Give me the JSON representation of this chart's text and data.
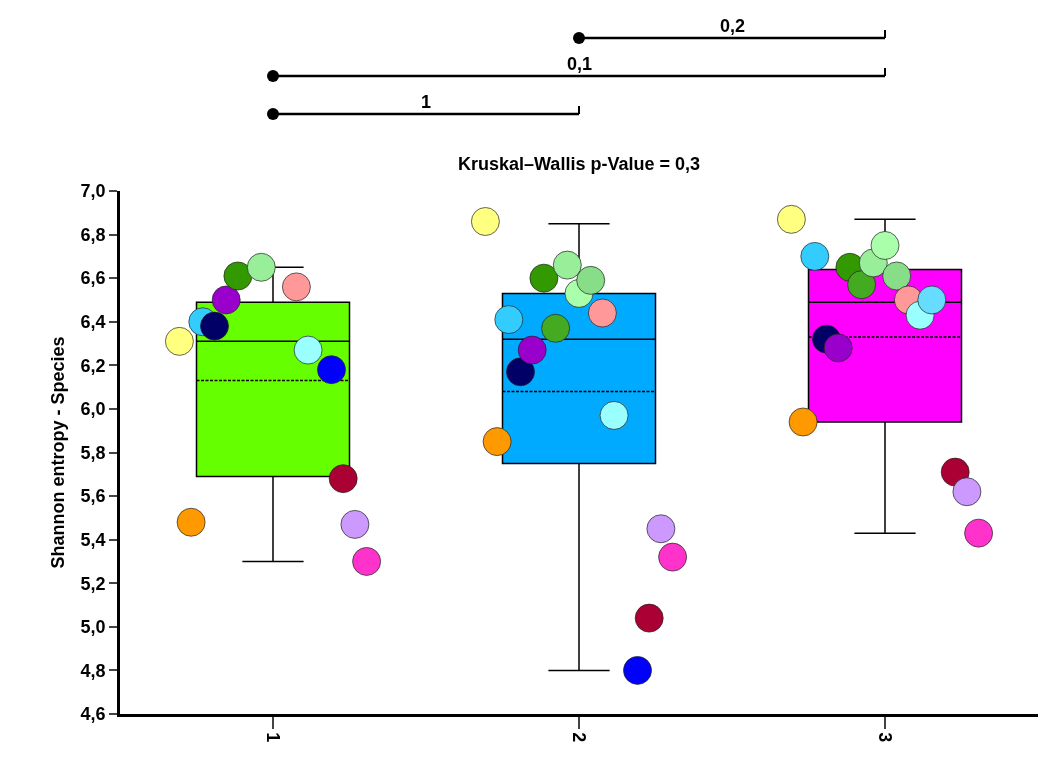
{
  "chart_data": {
    "type": "box",
    "ylabel": "Shannon entropy - Species",
    "categories": [
      "1",
      "2",
      "3"
    ],
    "colors": [
      "#66ff00",
      "#00aaff",
      "#ff00ff"
    ],
    "boxes": [
      {
        "low": 5.3,
        "q1": 5.69,
        "median": 6.31,
        "q3": 6.49,
        "high": 6.65,
        "mean": 6.13
      },
      {
        "low": 4.8,
        "q1": 5.75,
        "median": 6.32,
        "q3": 6.53,
        "high": 6.85,
        "mean": 6.08
      },
      {
        "low": 5.43,
        "q1": 5.94,
        "median": 6.49,
        "q3": 6.64,
        "high": 6.87,
        "mean": 6.33
      }
    ],
    "ylim": [
      4.6,
      7.0
    ],
    "yticks": [
      {
        "value": 4.6,
        "label": "4,6"
      },
      {
        "value": 4.8,
        "label": "4,8"
      },
      {
        "value": 5.0,
        "label": "5,0"
      },
      {
        "value": 5.2,
        "label": "5,2"
      },
      {
        "value": 5.4,
        "label": "5,4"
      },
      {
        "value": 5.6,
        "label": "5,6"
      },
      {
        "value": 5.8,
        "label": "5,8"
      },
      {
        "value": 6.0,
        "label": "6,0"
      },
      {
        "value": 6.2,
        "label": "6,2"
      },
      {
        "value": 6.4,
        "label": "6,4"
      },
      {
        "value": 6.6,
        "label": "6,6"
      },
      {
        "value": 6.8,
        "label": "6,8"
      },
      {
        "value": 7.0,
        "label": "7,0"
      }
    ],
    "series": [
      {
        "type": "scatter",
        "color": "#ffff80",
        "x": [
          "1",
          "2",
          "3"
        ],
        "values": [
          6.31,
          6.86,
          6.87
        ]
      },
      {
        "type": "scatter",
        "color": "#ff9900",
        "x": [
          "1",
          "2",
          "3"
        ],
        "values": [
          5.48,
          5.85,
          5.94
        ]
      },
      {
        "type": "scatter",
        "color": "#33ccff",
        "x": [
          "1",
          "2",
          "3"
        ],
        "values": [
          6.4,
          6.41,
          6.7
        ]
      },
      {
        "type": "scatter",
        "color": "#000066",
        "x": [
          "1",
          "2",
          "3"
        ],
        "values": [
          6.38,
          6.17,
          6.32
        ]
      },
      {
        "type": "scatter",
        "color": "#9900cc",
        "x": [
          "1",
          "2",
          "3"
        ],
        "values": [
          6.5,
          6.27,
          6.28
        ]
      },
      {
        "type": "scatter",
        "color": "#339900",
        "x": [
          "1",
          "2",
          "3"
        ],
        "values": [
          6.61,
          6.6,
          6.65
        ]
      },
      {
        "type": "scatter",
        "color": "#44aa22",
        "x": [
          "1",
          "2",
          "3"
        ],
        "values": [
          null,
          6.37,
          6.57
        ]
      },
      {
        "type": "scatter",
        "color": "#99ee99",
        "x": [
          "1",
          "2",
          "3"
        ],
        "values": [
          6.65,
          6.66,
          6.67
        ]
      },
      {
        "type": "scatter",
        "color": "#aaffaa",
        "x": [
          "1",
          "2",
          "3"
        ],
        "values": [
          null,
          6.53,
          6.75
        ]
      },
      {
        "type": "scatter",
        "color": "#88dd88",
        "x": [
          "1",
          "2",
          "3"
        ],
        "values": [
          null,
          6.59,
          6.61
        ]
      },
      {
        "type": "scatter",
        "color": "#ff9999",
        "x": [
          "1",
          "2",
          "3"
        ],
        "values": [
          6.56,
          6.44,
          6.5
        ]
      },
      {
        "type": "scatter",
        "color": "#99ffff",
        "x": [
          "1",
          "2",
          "3"
        ],
        "values": [
          6.27,
          5.97,
          6.43
        ]
      },
      {
        "type": "scatter",
        "color": "#66ddff",
        "x": [
          "1",
          "2",
          "3"
        ],
        "values": [
          null,
          null,
          6.5
        ]
      },
      {
        "type": "scatter",
        "color": "#0000ff",
        "x": [
          "1",
          "2",
          "3"
        ],
        "values": [
          6.18,
          4.8,
          null
        ]
      },
      {
        "type": "scatter",
        "color": "#aa0033",
        "x": [
          "1",
          "2",
          "3"
        ],
        "values": [
          5.68,
          5.04,
          5.71
        ]
      },
      {
        "type": "scatter",
        "color": "#cc99ff",
        "x": [
          "1",
          "2",
          "3"
        ],
        "values": [
          5.47,
          5.45,
          5.62
        ]
      },
      {
        "type": "scatter",
        "color": "#ff33cc",
        "x": [
          "1",
          "2",
          "3"
        ],
        "values": [
          5.3,
          5.32,
          5.43
        ]
      }
    ],
    "annotations": [
      "1",
      "0,1",
      "0,2",
      "Kruskal–Wallis p-Value = 0,3"
    ],
    "marker": "circle"
  }
}
